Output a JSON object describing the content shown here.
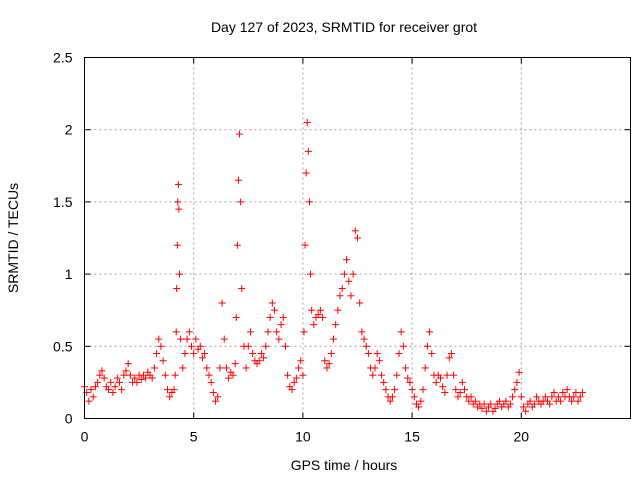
{
  "chart_data": {
    "type": "scatter",
    "title": "Day 127 of 2023, SRMTID for receiver grot",
    "xlabel": "GPS time / hours",
    "ylabel": "SRMTID / TECUs",
    "xlim": [
      0,
      25
    ],
    "ylim": [
      0,
      2.5
    ],
    "xticks": [
      0,
      5,
      10,
      15,
      20
    ],
    "xtick_labels": [
      "0",
      "5",
      "10",
      "15",
      "20"
    ],
    "yticks": [
      0,
      0.5,
      1,
      1.5,
      2,
      2.5
    ],
    "ytick_labels": [
      "0",
      "0.5",
      "1",
      "1.5",
      "2",
      "2.5"
    ],
    "grid": true,
    "marker": "+",
    "color": "#ff0000",
    "series": [
      {
        "name": "SRMTID",
        "points": [
          [
            0.0,
            0.22
          ],
          [
            0.1,
            0.18
          ],
          [
            0.2,
            0.12
          ],
          [
            0.3,
            0.2
          ],
          [
            0.4,
            0.15
          ],
          [
            0.5,
            0.22
          ],
          [
            0.6,
            0.25
          ],
          [
            0.7,
            0.3
          ],
          [
            0.8,
            0.33
          ],
          [
            0.9,
            0.28
          ],
          [
            1.0,
            0.22
          ],
          [
            1.1,
            0.2
          ],
          [
            1.2,
            0.25
          ],
          [
            1.3,
            0.18
          ],
          [
            1.4,
            0.22
          ],
          [
            1.5,
            0.28
          ],
          [
            1.6,
            0.25
          ],
          [
            1.7,
            0.2
          ],
          [
            1.8,
            0.3
          ],
          [
            1.9,
            0.33
          ],
          [
            2.0,
            0.38
          ],
          [
            2.1,
            0.3
          ],
          [
            2.2,
            0.25
          ],
          [
            2.3,
            0.28
          ],
          [
            2.4,
            0.25
          ],
          [
            2.5,
            0.3
          ],
          [
            2.6,
            0.27
          ],
          [
            2.7,
            0.3
          ],
          [
            2.8,
            0.28
          ],
          [
            2.9,
            0.32
          ],
          [
            3.0,
            0.3
          ],
          [
            3.1,
            0.28
          ],
          [
            3.2,
            0.35
          ],
          [
            3.3,
            0.45
          ],
          [
            3.4,
            0.55
          ],
          [
            3.5,
            0.5
          ],
          [
            3.6,
            0.4
          ],
          [
            3.7,
            0.3
          ],
          [
            3.8,
            0.2
          ],
          [
            3.9,
            0.15
          ],
          [
            4.0,
            0.18
          ],
          [
            4.1,
            0.2
          ],
          [
            4.15,
            0.3
          ],
          [
            4.2,
            0.6
          ],
          [
            4.22,
            0.9
          ],
          [
            4.25,
            1.2
          ],
          [
            4.27,
            1.5
          ],
          [
            4.3,
            1.62
          ],
          [
            4.32,
            1.45
          ],
          [
            4.35,
            1.0
          ],
          [
            4.4,
            0.55
          ],
          [
            4.5,
            0.35
          ],
          [
            4.6,
            0.45
          ],
          [
            4.7,
            0.55
          ],
          [
            4.8,
            0.6
          ],
          [
            4.9,
            0.5
          ],
          [
            5.0,
            0.45
          ],
          [
            5.1,
            0.55
          ],
          [
            5.2,
            0.48
          ],
          [
            5.3,
            0.5
          ],
          [
            5.4,
            0.42
          ],
          [
            5.5,
            0.45
          ],
          [
            5.6,
            0.35
          ],
          [
            5.7,
            0.3
          ],
          [
            5.8,
            0.25
          ],
          [
            5.9,
            0.18
          ],
          [
            6.0,
            0.12
          ],
          [
            6.1,
            0.15
          ],
          [
            6.2,
            0.35
          ],
          [
            6.3,
            0.8
          ],
          [
            6.4,
            0.55
          ],
          [
            6.5,
            0.35
          ],
          [
            6.6,
            0.28
          ],
          [
            6.7,
            0.32
          ],
          [
            6.8,
            0.3
          ],
          [
            6.9,
            0.38
          ],
          [
            6.95,
            0.7
          ],
          [
            7.0,
            1.2
          ],
          [
            7.05,
            1.65
          ],
          [
            7.1,
            1.97
          ],
          [
            7.15,
            1.5
          ],
          [
            7.2,
            0.9
          ],
          [
            7.3,
            0.5
          ],
          [
            7.4,
            0.35
          ],
          [
            7.5,
            0.5
          ],
          [
            7.6,
            0.6
          ],
          [
            7.7,
            0.45
          ],
          [
            7.8,
            0.4
          ],
          [
            7.9,
            0.38
          ],
          [
            8.0,
            0.4
          ],
          [
            8.1,
            0.45
          ],
          [
            8.2,
            0.42
          ],
          [
            8.3,
            0.5
          ],
          [
            8.4,
            0.6
          ],
          [
            8.5,
            0.7
          ],
          [
            8.6,
            0.8
          ],
          [
            8.7,
            0.75
          ],
          [
            8.8,
            0.6
          ],
          [
            8.9,
            0.55
          ],
          [
            9.0,
            0.65
          ],
          [
            9.1,
            0.7
          ],
          [
            9.2,
            0.5
          ],
          [
            9.3,
            0.3
          ],
          [
            9.4,
            0.22
          ],
          [
            9.5,
            0.2
          ],
          [
            9.6,
            0.25
          ],
          [
            9.7,
            0.28
          ],
          [
            9.8,
            0.35
          ],
          [
            9.9,
            0.4
          ],
          [
            10.0,
            0.3
          ],
          [
            10.05,
            0.6
          ],
          [
            10.1,
            1.2
          ],
          [
            10.15,
            1.7
          ],
          [
            10.2,
            2.05
          ],
          [
            10.25,
            1.85
          ],
          [
            10.3,
            1.5
          ],
          [
            10.35,
            1.0
          ],
          [
            10.4,
            0.75
          ],
          [
            10.5,
            0.65
          ],
          [
            10.6,
            0.7
          ],
          [
            10.7,
            0.72
          ],
          [
            10.8,
            0.75
          ],
          [
            10.9,
            0.7
          ],
          [
            11.0,
            0.4
          ],
          [
            11.1,
            0.35
          ],
          [
            11.2,
            0.38
          ],
          [
            11.3,
            0.45
          ],
          [
            11.4,
            0.55
          ],
          [
            11.5,
            0.65
          ],
          [
            11.6,
            0.75
          ],
          [
            11.7,
            0.85
          ],
          [
            11.8,
            0.9
          ],
          [
            11.9,
            1.0
          ],
          [
            12.0,
            1.1
          ],
          [
            12.1,
            0.95
          ],
          [
            12.2,
            0.85
          ],
          [
            12.3,
            1.0
          ],
          [
            12.4,
            1.3
          ],
          [
            12.5,
            1.25
          ],
          [
            12.6,
            0.8
          ],
          [
            12.7,
            0.6
          ],
          [
            12.8,
            0.55
          ],
          [
            12.9,
            0.5
          ],
          [
            13.0,
            0.45
          ],
          [
            13.1,
            0.35
          ],
          [
            13.2,
            0.3
          ],
          [
            13.3,
            0.35
          ],
          [
            13.4,
            0.45
          ],
          [
            13.5,
            0.4
          ],
          [
            13.6,
            0.3
          ],
          [
            13.7,
            0.25
          ],
          [
            13.8,
            0.2
          ],
          [
            13.9,
            0.15
          ],
          [
            14.0,
            0.12
          ],
          [
            14.1,
            0.15
          ],
          [
            14.2,
            0.2
          ],
          [
            14.3,
            0.3
          ],
          [
            14.4,
            0.45
          ],
          [
            14.5,
            0.6
          ],
          [
            14.6,
            0.5
          ],
          [
            14.7,
            0.35
          ],
          [
            14.8,
            0.28
          ],
          [
            14.9,
            0.25
          ],
          [
            15.0,
            0.2
          ],
          [
            15.1,
            0.15
          ],
          [
            15.2,
            0.1
          ],
          [
            15.3,
            0.08
          ],
          [
            15.4,
            0.12
          ],
          [
            15.5,
            0.2
          ],
          [
            15.6,
            0.35
          ],
          [
            15.7,
            0.5
          ],
          [
            15.8,
            0.6
          ],
          [
            15.9,
            0.45
          ],
          [
            16.0,
            0.3
          ],
          [
            16.1,
            0.25
          ],
          [
            16.2,
            0.3
          ],
          [
            16.3,
            0.28
          ],
          [
            16.4,
            0.22
          ],
          [
            16.5,
            0.18
          ],
          [
            16.6,
            0.3
          ],
          [
            16.7,
            0.42
          ],
          [
            16.8,
            0.45
          ],
          [
            16.9,
            0.3
          ],
          [
            17.0,
            0.2
          ],
          [
            17.1,
            0.15
          ],
          [
            17.2,
            0.18
          ],
          [
            17.3,
            0.25
          ],
          [
            17.4,
            0.2
          ],
          [
            17.5,
            0.15
          ],
          [
            17.6,
            0.12
          ],
          [
            17.7,
            0.15
          ],
          [
            17.8,
            0.1
          ],
          [
            17.9,
            0.12
          ],
          [
            18.0,
            0.08
          ],
          [
            18.1,
            0.1
          ],
          [
            18.2,
            0.07
          ],
          [
            18.3,
            0.1
          ],
          [
            18.4,
            0.05
          ],
          [
            18.5,
            0.08
          ],
          [
            18.6,
            0.1
          ],
          [
            18.7,
            0.05
          ],
          [
            18.8,
            0.07
          ],
          [
            18.9,
            0.1
          ],
          [
            19.0,
            0.12
          ],
          [
            19.1,
            0.08
          ],
          [
            19.2,
            0.1
          ],
          [
            19.3,
            0.12
          ],
          [
            19.4,
            0.08
          ],
          [
            19.5,
            0.1
          ],
          [
            19.6,
            0.15
          ],
          [
            19.7,
            0.2
          ],
          [
            19.8,
            0.25
          ],
          [
            19.9,
            0.32
          ],
          [
            20.0,
            0.15
          ],
          [
            20.1,
            0.08
          ],
          [
            20.2,
            0.05
          ],
          [
            20.3,
            0.1
          ],
          [
            20.4,
            0.12
          ],
          [
            20.5,
            0.08
          ],
          [
            20.6,
            0.1
          ],
          [
            20.7,
            0.15
          ],
          [
            20.8,
            0.12
          ],
          [
            20.9,
            0.1
          ],
          [
            21.0,
            0.12
          ],
          [
            21.1,
            0.15
          ],
          [
            21.2,
            0.12
          ],
          [
            21.3,
            0.1
          ],
          [
            21.4,
            0.15
          ],
          [
            21.5,
            0.18
          ],
          [
            21.6,
            0.12
          ],
          [
            21.7,
            0.15
          ],
          [
            21.8,
            0.12
          ],
          [
            21.9,
            0.18
          ],
          [
            22.0,
            0.15
          ],
          [
            22.1,
            0.2
          ],
          [
            22.2,
            0.15
          ],
          [
            22.3,
            0.12
          ],
          [
            22.4,
            0.15
          ],
          [
            22.5,
            0.18
          ],
          [
            22.6,
            0.12
          ],
          [
            22.7,
            0.15
          ],
          [
            22.8,
            0.18
          ]
        ]
      }
    ]
  }
}
